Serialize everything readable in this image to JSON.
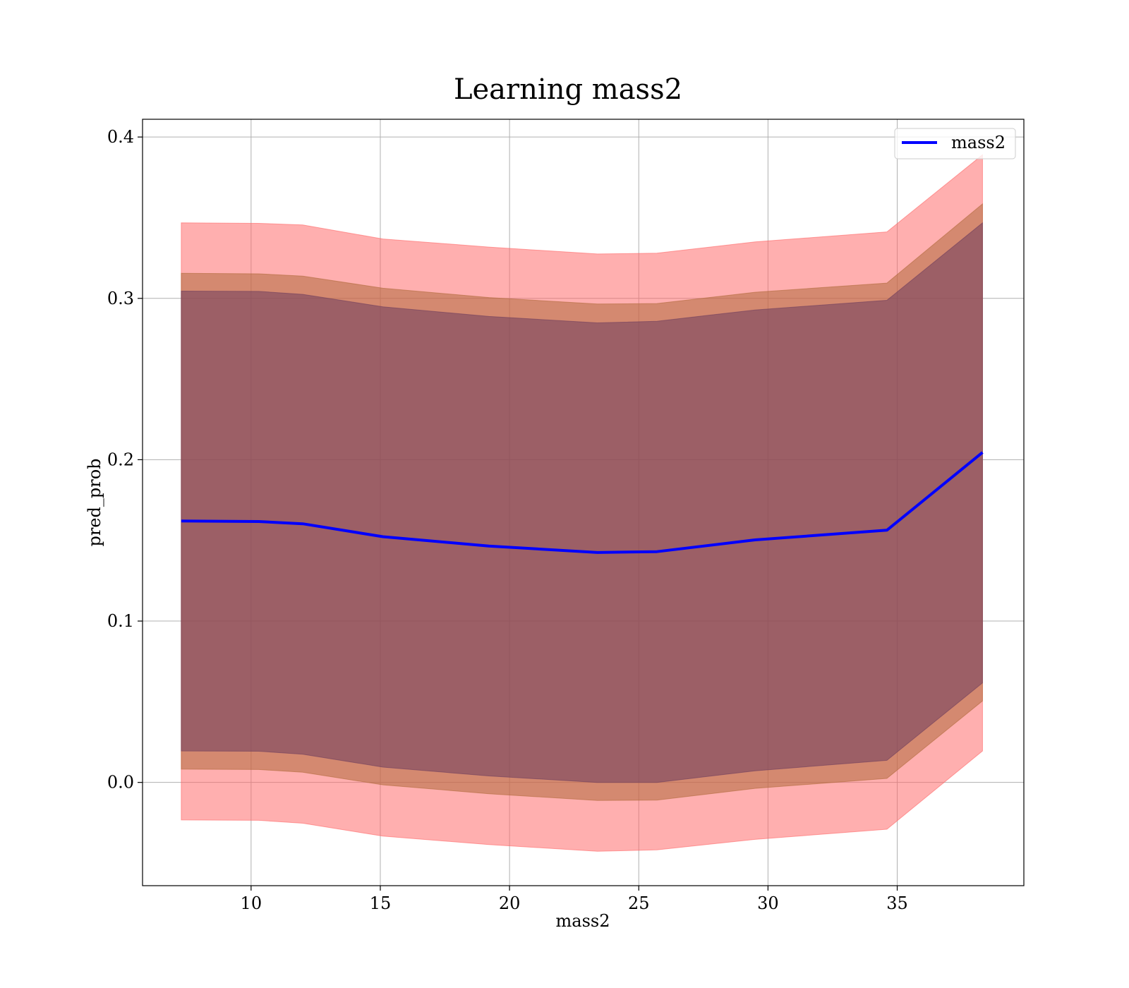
{
  "chart_data": {
    "type": "line",
    "title": "Learning mass2",
    "xlabel": "mass2",
    "ylabel": "pred_prob",
    "xlim": [
      5.8,
      39.9
    ],
    "ylim": [
      -0.064,
      0.411
    ],
    "xticks": [
      10,
      15,
      20,
      25,
      30,
      35
    ],
    "xtick_labels": [
      "10",
      "15",
      "20",
      "25",
      "30",
      "35"
    ],
    "yticks": [
      0.0,
      0.1,
      0.2,
      0.3,
      0.4
    ],
    "ytick_labels": [
      "0.0",
      "0.1",
      "0.2",
      "0.3",
      "0.4"
    ],
    "grid": true,
    "legend_position": "top-right",
    "x": [
      7.3,
      10.3,
      12.0,
      15.1,
      19.2,
      23.4,
      25.7,
      29.5,
      34.6,
      38.3
    ],
    "series": [
      {
        "name": "mass2",
        "color": "#0000ff",
        "values": [
          0.162,
          0.1617,
          0.1603,
          0.1523,
          0.1465,
          0.1425,
          0.143,
          0.1503,
          0.1563,
          0.2045
        ]
      }
    ],
    "bands": [
      {
        "color": "#ff6666",
        "lower": [
          -0.0233,
          -0.0235,
          -0.0253,
          -0.0333,
          -0.0385,
          -0.0427,
          -0.0418,
          -0.0353,
          -0.029,
          0.0195
        ],
        "upper": [
          0.3468,
          0.3465,
          0.3455,
          0.3368,
          0.3318,
          0.3275,
          0.328,
          0.335,
          0.3412,
          0.389
        ]
      },
      {
        "color": "#b06a3c",
        "lower": [
          0.0082,
          0.008,
          0.0063,
          -0.0015,
          -0.007,
          -0.0112,
          -0.011,
          -0.0037,
          0.0025,
          0.0505
        ],
        "upper": [
          0.3155,
          0.3152,
          0.3138,
          0.3063,
          0.3005,
          0.2965,
          0.2968,
          0.3038,
          0.3095,
          0.3585
        ]
      },
      {
        "color": "#6e3d5e",
        "lower": [
          0.0195,
          0.0193,
          0.0175,
          0.0095,
          0.004,
          0.0,
          0.0,
          0.0072,
          0.0137,
          0.0617
        ],
        "upper": [
          0.3045,
          0.3043,
          0.3025,
          0.2948,
          0.2888,
          0.2848,
          0.2858,
          0.2928,
          0.2988,
          0.3468
        ]
      }
    ]
  }
}
